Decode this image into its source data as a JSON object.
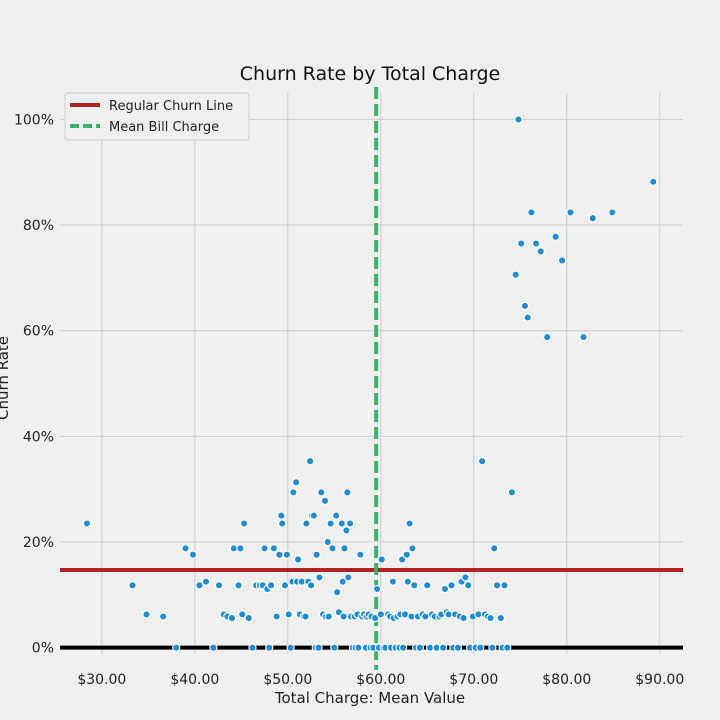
{
  "chart_data": {
    "type": "scatter",
    "title": "Churn Rate by Total Charge",
    "xlabel": "Total Charge: Mean Value",
    "ylabel": "Churn Rate",
    "xlim": [
      25.5,
      92.5
    ],
    "ylim": [
      -0.012,
      1.05
    ],
    "x_ticks": [
      30,
      40,
      50,
      60,
      70,
      80,
      90
    ],
    "x_tick_labels": [
      "$30.00",
      "$40.00",
      "$50.00",
      "$60.00",
      "$70.00",
      "$80.00",
      "$90.00"
    ],
    "y_ticks": [
      0,
      0.2,
      0.4,
      0.6,
      0.8,
      1.0
    ],
    "y_tick_labels": [
      "0%",
      "20%",
      "40%",
      "60%",
      "80%",
      "100%"
    ],
    "grid": true,
    "legend_position": "top-left",
    "legend": [
      "Regular Churn Line",
      "Mean Bill Charge"
    ],
    "reference_lines": {
      "regular_churn_rate": 0.147,
      "mean_bill_charge": 59.5,
      "zero_line": 0
    },
    "colors": {
      "points": "#1f8dd6",
      "regular_churn_line": "#b22222",
      "mean_bill_line": "#3cb371",
      "zero_line": "#000000",
      "background": "#f0f0f0",
      "grid": "#cbcbcb"
    },
    "series": [
      {
        "points": [
          [
            28.4,
            0.235
          ],
          [
            33.3,
            0.118
          ],
          [
            34.8,
            0.063
          ],
          [
            36.6,
            0.059
          ],
          [
            38.0,
            0.0
          ],
          [
            39.0,
            0.188
          ],
          [
            39.8,
            0.176
          ],
          [
            40.5,
            0.118
          ],
          [
            41.2,
            0.125
          ],
          [
            42.0,
            0.0
          ],
          [
            42.6,
            0.118
          ],
          [
            43.1,
            0.063
          ],
          [
            43.5,
            0.059
          ],
          [
            44.0,
            0.056
          ],
          [
            44.2,
            0.188
          ],
          [
            44.7,
            0.118
          ],
          [
            44.9,
            0.188
          ],
          [
            45.1,
            0.063
          ],
          [
            45.3,
            0.235
          ],
          [
            45.8,
            0.056
          ],
          [
            46.2,
            0.0
          ],
          [
            46.6,
            0.118
          ],
          [
            47.0,
            0.118
          ],
          [
            47.3,
            0.118
          ],
          [
            47.5,
            0.188
          ],
          [
            47.8,
            0.111
          ],
          [
            48.0,
            0.0
          ],
          [
            48.2,
            0.118
          ],
          [
            48.5,
            0.188
          ],
          [
            48.8,
            0.059
          ],
          [
            49.1,
            0.176
          ],
          [
            49.3,
            0.25
          ],
          [
            49.4,
            0.235
          ],
          [
            49.7,
            0.118
          ],
          [
            49.9,
            0.176
          ],
          [
            50.1,
            0.063
          ],
          [
            50.3,
            0.0
          ],
          [
            50.5,
            0.125
          ],
          [
            50.6,
            0.294
          ],
          [
            50.9,
            0.313
          ],
          [
            51.0,
            0.125
          ],
          [
            51.1,
            0.167
          ],
          [
            51.3,
            0.063
          ],
          [
            51.5,
            0.125
          ],
          [
            51.7,
            0.059
          ],
          [
            51.9,
            0.059
          ],
          [
            52.0,
            0.235
          ],
          [
            52.2,
            0.125
          ],
          [
            52.4,
            0.353
          ],
          [
            52.5,
            0.118
          ],
          [
            52.6,
            0.25
          ],
          [
            52.8,
            0.25
          ],
          [
            53.0,
            0.0
          ],
          [
            53.1,
            0.176
          ],
          [
            53.3,
            0.0
          ],
          [
            53.4,
            0.133
          ],
          [
            53.6,
            0.294
          ],
          [
            53.8,
            0.063
          ],
          [
            54.0,
            0.278
          ],
          [
            54.1,
            0.059
          ],
          [
            54.3,
            0.2
          ],
          [
            54.4,
            0.059
          ],
          [
            54.6,
            0.235
          ],
          [
            54.8,
            0.188
          ],
          [
            55.0,
            0.0
          ],
          [
            55.2,
            0.25
          ],
          [
            55.3,
            0.105
          ],
          [
            55.5,
            0.067
          ],
          [
            55.8,
            0.235
          ],
          [
            55.9,
            0.125
          ],
          [
            56.0,
            0.059
          ],
          [
            56.1,
            0.188
          ],
          [
            56.3,
            0.222
          ],
          [
            56.4,
            0.294
          ],
          [
            56.5,
            0.133
          ],
          [
            56.7,
            0.235
          ],
          [
            56.8,
            0.059
          ],
          [
            57.0,
            0.0
          ],
          [
            57.2,
            0.059
          ],
          [
            57.3,
            0.0
          ],
          [
            57.5,
            0.063
          ],
          [
            57.6,
            0.0
          ],
          [
            57.8,
            0.176
          ],
          [
            58.0,
            0.059
          ],
          [
            58.2,
            0.063
          ],
          [
            58.4,
            0.0
          ],
          [
            58.5,
            0.059
          ],
          [
            58.7,
            0.063
          ],
          [
            58.9,
            0.0
          ],
          [
            59.0,
            0.059
          ],
          [
            59.2,
            0.0
          ],
          [
            59.4,
            0.056
          ],
          [
            59.6,
            0.111
          ],
          [
            59.8,
            0.0
          ],
          [
            60.0,
            0.063
          ],
          [
            60.1,
            0.167
          ],
          [
            60.3,
            0.0
          ],
          [
            60.5,
            0.0
          ],
          [
            60.8,
            0.063
          ],
          [
            61.0,
            0.059
          ],
          [
            61.1,
            0.0
          ],
          [
            61.3,
            0.125
          ],
          [
            61.4,
            0.056
          ],
          [
            61.6,
            0.0
          ],
          [
            61.8,
            0.059
          ],
          [
            62.0,
            0.0
          ],
          [
            62.1,
            0.063
          ],
          [
            62.3,
            0.167
          ],
          [
            62.4,
            0.0
          ],
          [
            62.6,
            0.063
          ],
          [
            62.8,
            0.176
          ],
          [
            62.9,
            0.125
          ],
          [
            63.1,
            0.235
          ],
          [
            63.3,
            0.059
          ],
          [
            63.4,
            0.188
          ],
          [
            63.6,
            0.118
          ],
          [
            63.8,
            0.0
          ],
          [
            64.0,
            0.059
          ],
          [
            64.2,
            0.0
          ],
          [
            64.5,
            0.063
          ],
          [
            64.8,
            0.059
          ],
          [
            65.0,
            0.118
          ],
          [
            65.3,
            0.0
          ],
          [
            65.5,
            0.063
          ],
          [
            65.8,
            0.059
          ],
          [
            66.0,
            0.0
          ],
          [
            66.3,
            0.059
          ],
          [
            66.5,
            0.063
          ],
          [
            66.7,
            0.0
          ],
          [
            66.9,
            0.111
          ],
          [
            67.1,
            0.067
          ],
          [
            67.3,
            0.063
          ],
          [
            67.6,
            0.118
          ],
          [
            67.8,
            0.0
          ],
          [
            68.0,
            0.063
          ],
          [
            68.3,
            0.0
          ],
          [
            68.5,
            0.059
          ],
          [
            68.7,
            0.125
          ],
          [
            68.9,
            0.056
          ],
          [
            69.1,
            0.133
          ],
          [
            69.4,
            0.118
          ],
          [
            69.6,
            0.0
          ],
          [
            69.9,
            0.059
          ],
          [
            70.2,
            0.0
          ],
          [
            70.5,
            0.063
          ],
          [
            70.7,
            0.0
          ],
          [
            70.9,
            0.353
          ],
          [
            71.2,
            0.063
          ],
          [
            71.5,
            0.059
          ],
          [
            71.8,
            0.056
          ],
          [
            72.0,
            0.0
          ],
          [
            72.2,
            0.188
          ],
          [
            72.5,
            0.118
          ],
          [
            72.9,
            0.056
          ],
          [
            73.1,
            0.0
          ],
          [
            73.3,
            0.118
          ],
          [
            73.6,
            0.0
          ],
          [
            74.1,
            0.294
          ],
          [
            74.5,
            0.706
          ],
          [
            74.8,
            1.0
          ],
          [
            75.1,
            0.765
          ],
          [
            75.5,
            0.647
          ],
          [
            75.8,
            0.625
          ],
          [
            76.2,
            0.824
          ],
          [
            76.7,
            0.765
          ],
          [
            77.2,
            0.75
          ],
          [
            77.9,
            0.588
          ],
          [
            78.8,
            0.778
          ],
          [
            79.5,
            0.733
          ],
          [
            80.4,
            0.824
          ],
          [
            81.8,
            0.588
          ],
          [
            82.8,
            0.813
          ],
          [
            84.9,
            0.824
          ],
          [
            89.3,
            0.882
          ]
        ]
      }
    ]
  }
}
